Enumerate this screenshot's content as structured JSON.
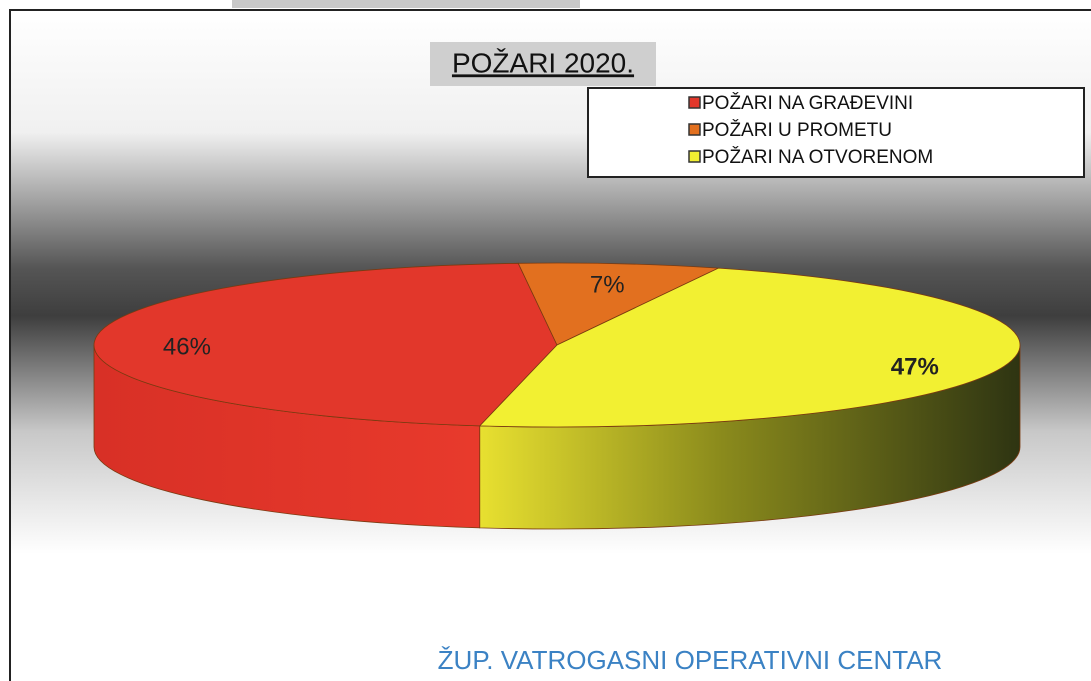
{
  "chart_data": {
    "type": "pie3d",
    "title": "POŽARI 2020.",
    "categories": [
      "POŽARI NA GRAĐEVINI",
      "POŽARI U PROMETU",
      "POŽARI NA OTVORENOM"
    ],
    "values": [
      46,
      7,
      47
    ],
    "value_labels": [
      "46%",
      "7%",
      "47%"
    ],
    "colors": [
      "#e2372b",
      "#e2701f",
      "#f2f032"
    ]
  },
  "footer": "ŽUP. VATROGASNI OPERATIVNI CENTAR"
}
